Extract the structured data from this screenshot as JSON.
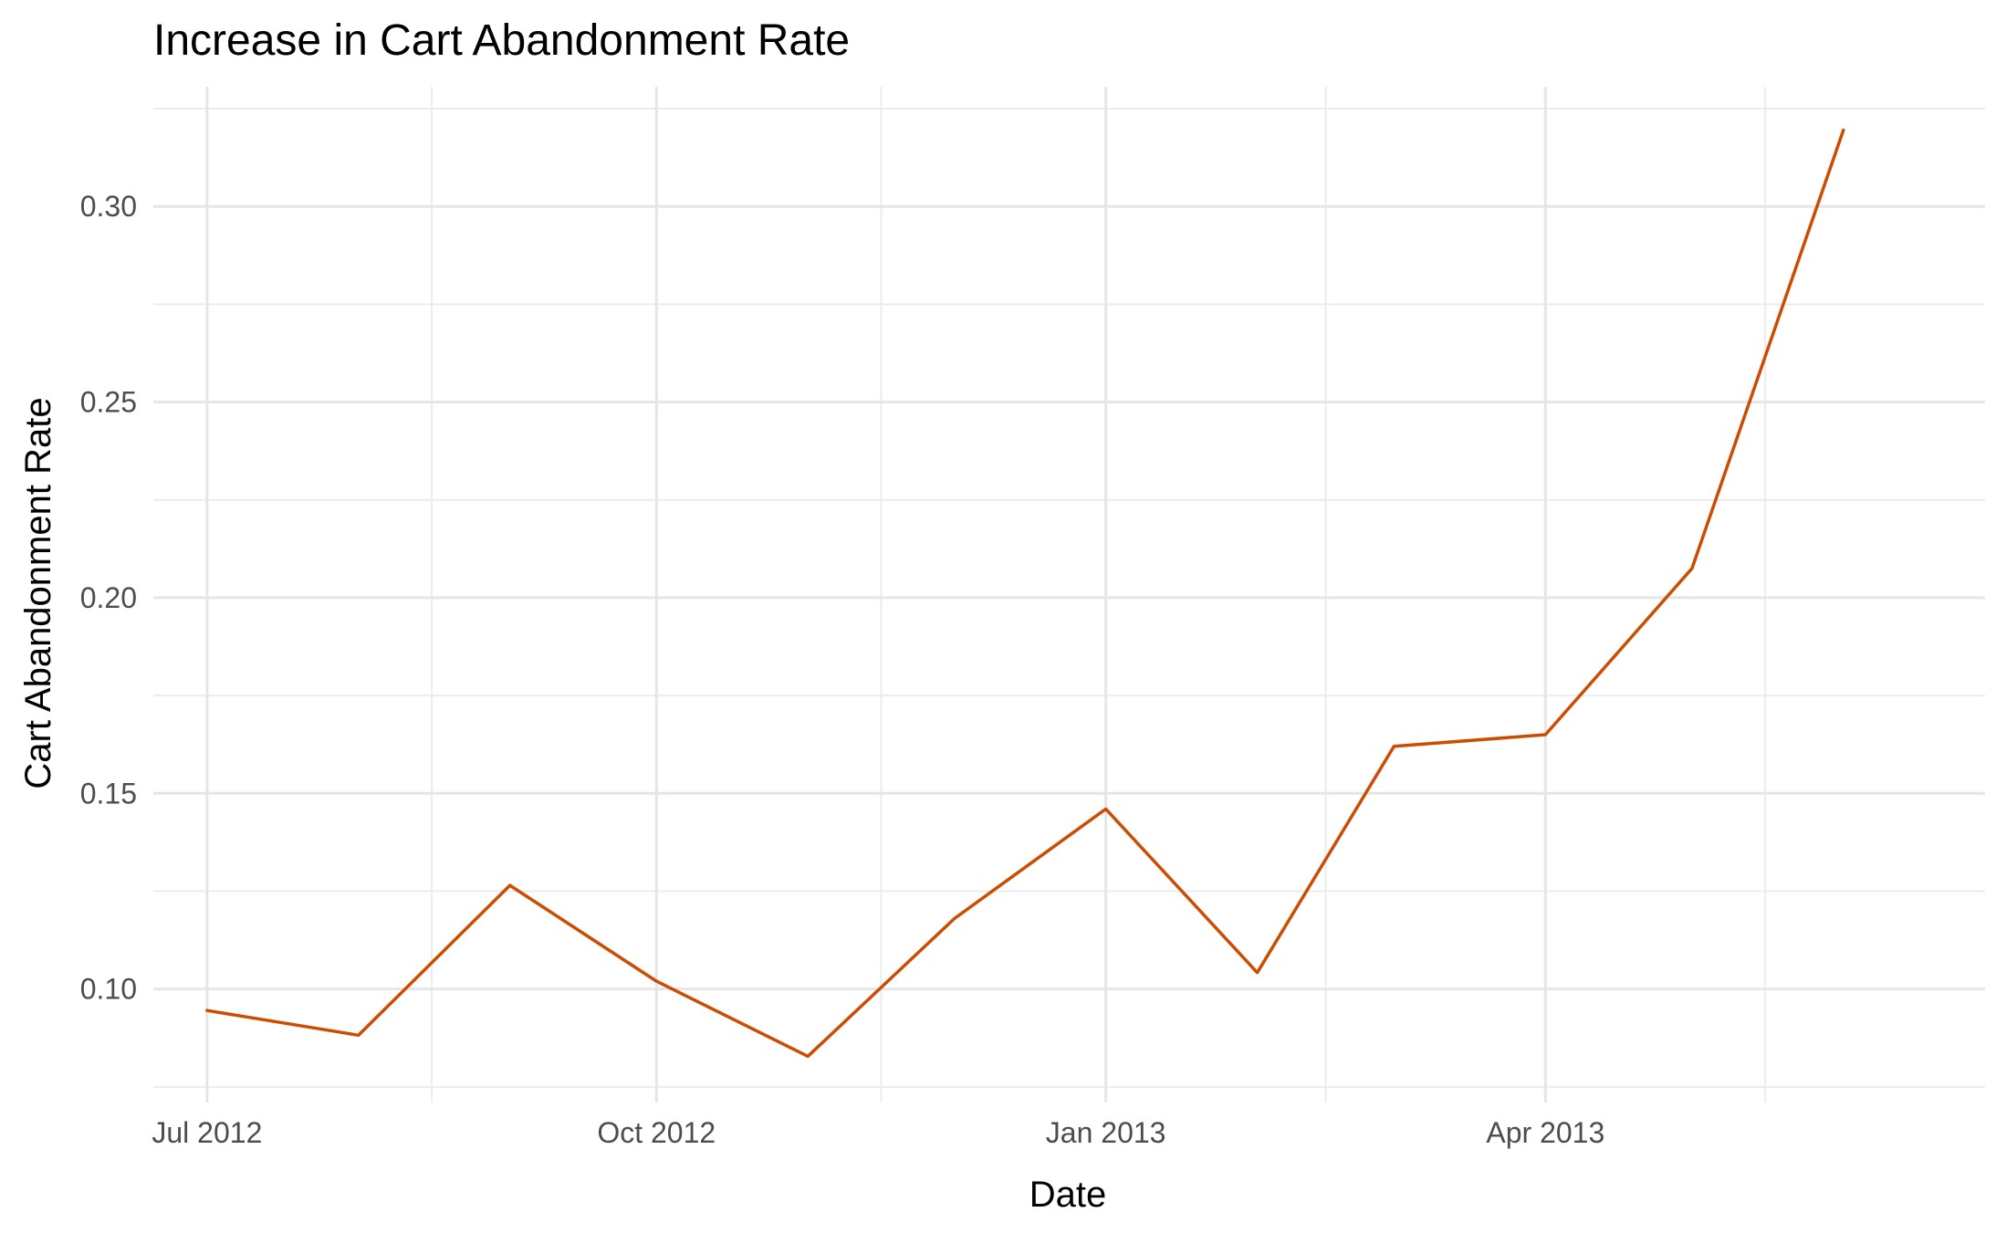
{
  "chart_data": {
    "type": "line",
    "title": "Increase in Cart Abandonment Rate",
    "xlabel": "Date",
    "ylabel": "Cart Abandonment Rate",
    "x_ticks": [
      {
        "date": "2012-07-01",
        "label": "Jul 2012"
      },
      {
        "date": "2012-10-01",
        "label": "Oct 2012"
      },
      {
        "date": "2013-01-01",
        "label": "Jan 2013"
      },
      {
        "date": "2013-04-01",
        "label": "Apr 2013"
      }
    ],
    "x_minor_ticks": [
      "2012-08-16",
      "2012-11-16",
      "2013-02-15",
      "2013-05-16"
    ],
    "y_ticks": [
      0.1,
      0.15,
      0.2,
      0.25,
      0.3
    ],
    "y_minor_ticks": [
      0.075,
      0.125,
      0.175,
      0.225,
      0.275,
      0.325
    ],
    "xlim": [
      "2012-06-20",
      "2013-06-30"
    ],
    "ylim": [
      0.071,
      0.3306
    ],
    "grid": true,
    "series": [
      {
        "color": "#cc4c02",
        "points": [
          {
            "x": "2012-07-01",
            "y": 0.0945
          },
          {
            "x": "2012-08-01",
            "y": 0.0882
          },
          {
            "x": "2012-09-01",
            "y": 0.1265
          },
          {
            "x": "2012-10-01",
            "y": 0.102
          },
          {
            "x": "2012-11-01",
            "y": 0.0828
          },
          {
            "x": "2012-12-01",
            "y": 0.118
          },
          {
            "x": "2013-01-01",
            "y": 0.146
          },
          {
            "x": "2013-02-01",
            "y": 0.1042
          },
          {
            "x": "2013-03-01",
            "y": 0.162
          },
          {
            "x": "2013-04-01",
            "y": 0.165
          },
          {
            "x": "2013-05-01",
            "y": 0.2075
          },
          {
            "x": "2013-06-01",
            "y": 0.3195
          }
        ]
      }
    ]
  }
}
